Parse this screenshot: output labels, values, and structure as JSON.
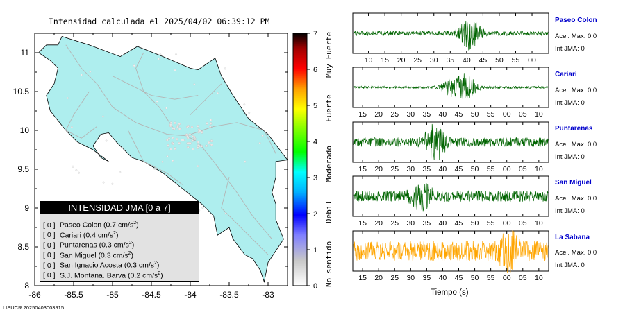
{
  "title": "Intensidad calculada el 2025/04/02_06:39:12_PM",
  "footer_id": "LISUCR 20250403003915",
  "map": {
    "x_ticks": [
      "-86",
      "-85.5",
      "-85",
      "-84.5",
      "-84",
      "-83.5",
      "-83"
    ],
    "y_ticks": [
      "11",
      "10.5",
      "10",
      "9.5",
      "9",
      "8.5",
      "8"
    ],
    "land_color": "#aeeeee"
  },
  "colorbar": {
    "ticks": [
      "0",
      "1",
      "2",
      "3",
      "4",
      "5",
      "6",
      "7"
    ],
    "labels": [
      "No sentido",
      "Debil",
      "Moderado",
      "Fuerte",
      "Muy Fuerte"
    ]
  },
  "legend": {
    "header": "INTENSIDAD JMA [0 a 7]",
    "items": [
      {
        "level": "[ 0 ]",
        "station": "Paseo Colon",
        "value": "(0.7 cm/s",
        "unit_exp": "2",
        "close": ")"
      },
      {
        "level": "[ 0 ]",
        "station": "Cariari",
        "value": "(0.4 cm/s",
        "unit_exp": "2",
        "close": ")"
      },
      {
        "level": "[ 0 ]",
        "station": "Puntarenas",
        "value": "(0.3 cm/s",
        "unit_exp": "2",
        "close": ")"
      },
      {
        "level": "[ 0 ]",
        "station": "San Miguel",
        "value": "(0.3 cm/s",
        "unit_exp": "2",
        "close": ")"
      },
      {
        "level": "[ 0 ]",
        "station": "San Ignacio Acosta",
        "value": "(0.3 cm/s",
        "unit_exp": "2",
        "close": ")"
      },
      {
        "level": "[ 0 ]",
        "station": "S.J. Montana. Barva",
        "value": "(0.2 cm/s",
        "unit_exp": "2",
        "close": ")"
      }
    ]
  },
  "chart_data": {
    "type": "line",
    "xlabel": "Tiempo (s)",
    "panels": [
      {
        "name": "Paseo Colon",
        "accel": "Acel. Max. 0.0",
        "jma": "Int JMA: 0",
        "color": "#006400",
        "ticks": [
          "10",
          "15",
          "20",
          "25",
          "30",
          "35",
          "40",
          "45",
          "50",
          "55",
          "00"
        ],
        "burst_at": 0.6,
        "amp": 0.85,
        "noise": 0.12
      },
      {
        "name": "Cariari",
        "accel": "Acel. Max. 0.0",
        "jma": "Int JMA: 0",
        "color": "#006400",
        "ticks": [
          "15",
          "20",
          "25",
          "30",
          "35",
          "40",
          "45",
          "50",
          "55",
          "00",
          "05",
          "10"
        ],
        "burst_at": 0.55,
        "amp": 0.8,
        "noise": 0.06
      },
      {
        "name": "Puntarenas",
        "accel": "Acel. Max. 0.0",
        "jma": "Int JMA: 0",
        "color": "#006400",
        "ticks": [
          "15",
          "20",
          "25",
          "30",
          "35",
          "40",
          "45",
          "50",
          "55",
          "00",
          "05",
          "10"
        ],
        "burst_at": 0.42,
        "amp": 0.9,
        "noise": 0.25
      },
      {
        "name": "San Miguel",
        "accel": "Acel. Max. 0.0",
        "jma": "Int JMA: 0",
        "color": "#006400",
        "ticks": [
          "15",
          "20",
          "25",
          "30",
          "35",
          "40",
          "45",
          "50",
          "55",
          "00",
          "05",
          "10"
        ],
        "burst_at": 0.35,
        "amp": 0.6,
        "noise": 0.3
      },
      {
        "name": "La Sabana",
        "accel": "Acel. Max. 0.0",
        "jma": "Int JMA: 0",
        "color": "#ffa500",
        "ticks": [
          "15",
          "20",
          "25",
          "30",
          "35",
          "40",
          "45",
          "50",
          "55",
          "00",
          "05",
          "10"
        ],
        "burst_at": 0.8,
        "amp": 0.7,
        "noise": 0.55
      }
    ]
  }
}
